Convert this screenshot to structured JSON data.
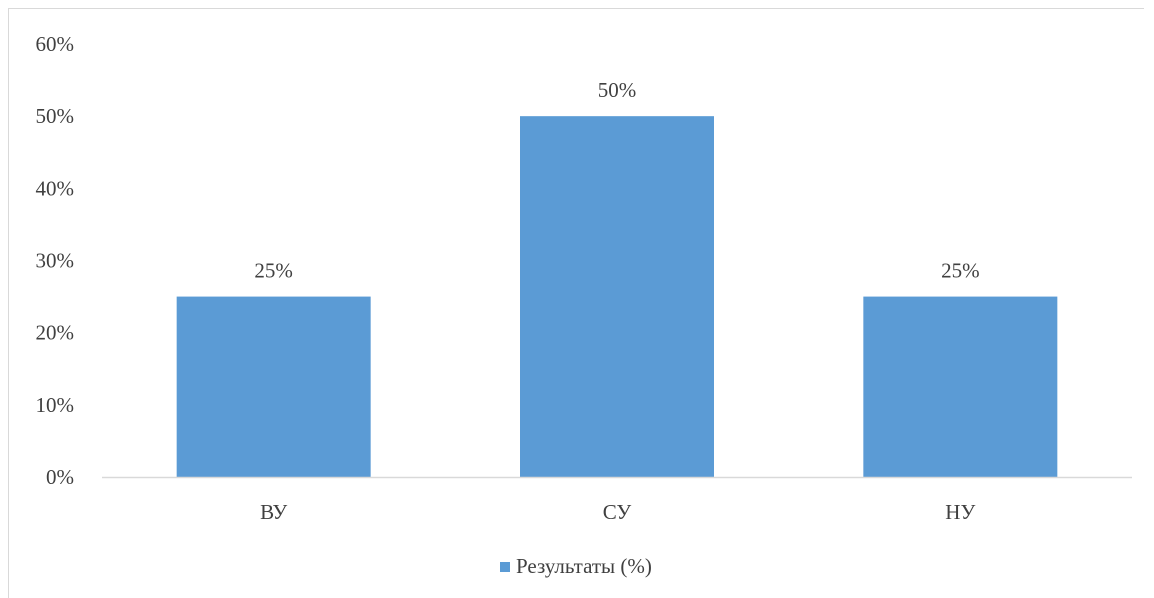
{
  "chart_data": {
    "type": "bar",
    "categories": [
      "ВУ",
      "СУ",
      "НУ"
    ],
    "series": [
      {
        "name": "Результаты (%)",
        "values": [
          25,
          50,
          25
        ],
        "data_labels": [
          "25%",
          "50%",
          "25%"
        ],
        "color": "#5b9bd5"
      }
    ],
    "y_ticks": [
      "0%",
      "10%",
      "20%",
      "30%",
      "40%",
      "50%",
      "60%"
    ],
    "ylim": [
      0,
      60
    ],
    "grid": false,
    "legend": "bottom",
    "colors": {
      "axis": "#d9d9d9",
      "text": "#404040"
    }
  }
}
